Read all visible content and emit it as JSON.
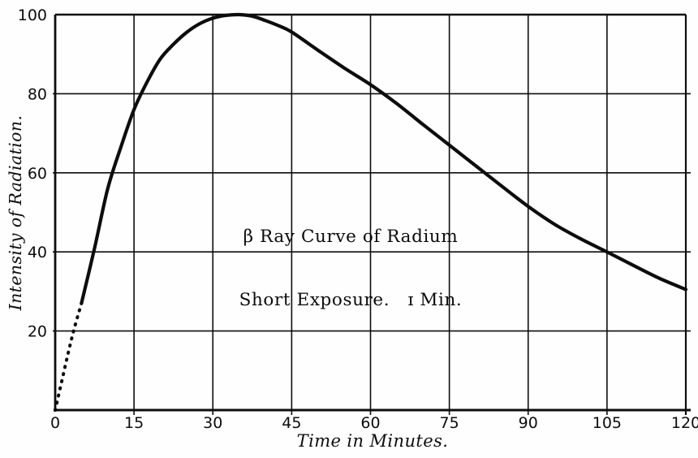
{
  "figure": {
    "background": "#fefefe",
    "ink_color": "#0d0d0d",
    "annotation": {
      "line1": "β Ray Curve of Radium",
      "line2": "Short Exposure.   ɪ Min."
    },
    "x_axis_title": "Time in Minutes.",
    "y_axis_title": "Intensity of Radiation."
  },
  "chart_data": {
    "type": "line",
    "title": "β Ray Curve of Radium — Short Exposure. 1 Min.",
    "xlabel": "Time in Minutes.",
    "ylabel": "Intensity of Radiation.",
    "xlim": [
      0,
      120
    ],
    "ylim": [
      0,
      100
    ],
    "x_ticks": [
      0,
      15,
      30,
      45,
      60,
      75,
      90,
      105,
      120
    ],
    "y_ticks": [
      20,
      40,
      60,
      80,
      100
    ],
    "grid": true,
    "legend": false,
    "series": [
      {
        "name": "beta-ray-intensity-dotted-rise",
        "style": "dotted",
        "points": [
          [
            0,
            0
          ],
          [
            1.2,
            7
          ],
          [
            2.4,
            14
          ],
          [
            3.6,
            20.5
          ],
          [
            5,
            27
          ]
        ]
      },
      {
        "name": "beta-ray-intensity",
        "style": "solid",
        "points": [
          [
            5,
            27
          ],
          [
            7.5,
            41
          ],
          [
            10,
            56
          ],
          [
            12.5,
            66.5
          ],
          [
            15,
            76
          ],
          [
            17.5,
            83
          ],
          [
            20,
            88.8
          ],
          [
            22.5,
            92.5
          ],
          [
            25,
            95.5
          ],
          [
            27.5,
            97.7
          ],
          [
            30,
            99.1
          ],
          [
            32.5,
            99.8
          ],
          [
            35,
            100
          ],
          [
            37.5,
            99.6
          ],
          [
            40,
            98.5
          ],
          [
            42.5,
            97.2
          ],
          [
            45,
            95.6
          ],
          [
            50,
            91
          ],
          [
            55,
            86.5
          ],
          [
            60,
            82.3
          ],
          [
            65,
            77.5
          ],
          [
            70,
            72.2
          ],
          [
            75,
            67
          ],
          [
            80,
            61.8
          ],
          [
            85,
            56.6
          ],
          [
            90,
            51.5
          ],
          [
            95,
            47
          ],
          [
            100,
            43.3
          ],
          [
            105,
            40
          ],
          [
            110,
            36.6
          ],
          [
            115,
            33.3
          ],
          [
            120,
            30.5
          ]
        ]
      }
    ]
  }
}
